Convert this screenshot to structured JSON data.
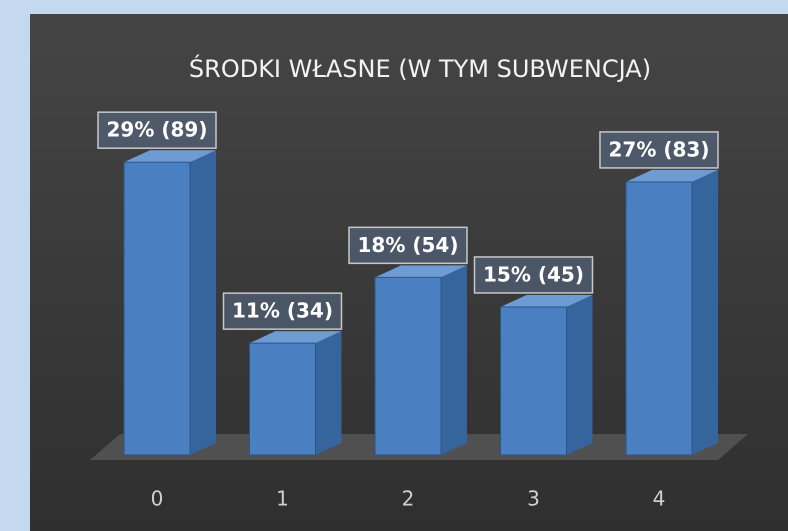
{
  "chart_data": {
    "type": "bar3d",
    "title": "ŚRODKI WŁASNE (W TYM SUBWENCJA)",
    "categories": [
      "0",
      "1",
      "2",
      "3",
      "4"
    ],
    "values": [
      89,
      34,
      54,
      45,
      83
    ],
    "value_labels": [
      "29% (89)",
      "11% (34)",
      "18% (54)",
      "15% (45)",
      "27% (83)"
    ],
    "color": "#4a80c2"
  }
}
